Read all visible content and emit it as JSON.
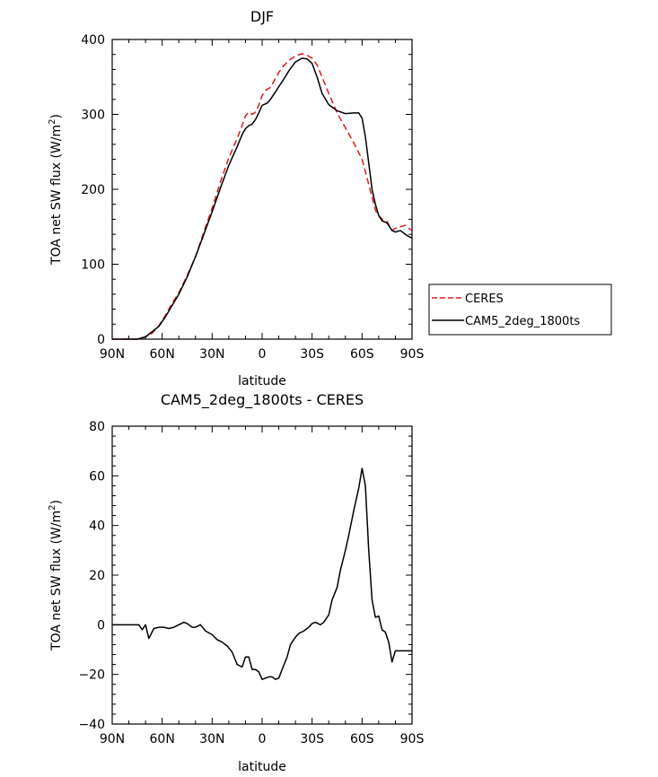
{
  "chart_data": [
    {
      "type": "line",
      "title": "DJF",
      "xlabel": "latitude",
      "ylabel": "TOA net SW flux (W/m",
      "ylabel_sup": "2",
      "ylabel_close": ")",
      "xlim": [
        90,
        -90
      ],
      "ylim": [
        0,
        400
      ],
      "xticks": [
        90,
        60,
        30,
        0,
        -30,
        -60,
        -90
      ],
      "xtick_labels": [
        "90N",
        "60N",
        "30N",
        "0",
        "30S",
        "60S",
        "90S"
      ],
      "yticks": [
        0,
        100,
        200,
        300,
        400
      ],
      "ytick_labels": [
        "0",
        "100",
        "200",
        "300",
        "400"
      ],
      "legend_position": "right",
      "series": [
        {
          "name": "CERES",
          "color": "#e01818",
          "dash": "dashed",
          "x": [
            90,
            85,
            80,
            75,
            70,
            66,
            62,
            58,
            54,
            50,
            45,
            40,
            35,
            30,
            25,
            20,
            15,
            12,
            10,
            8,
            6,
            4,
            2,
            0,
            -2,
            -5,
            -8,
            -10,
            -13,
            -16,
            -20,
            -24,
            -27,
            -30,
            -33,
            -36,
            -40,
            -45,
            -50,
            -55,
            -60,
            -63,
            -66,
            -68,
            -70,
            -72,
            -75,
            -78,
            -80,
            -83,
            -86,
            -88,
            -90
          ],
          "y": [
            0,
            0,
            0,
            0,
            3,
            8,
            18,
            32,
            48,
            62,
            85,
            110,
            143,
            175,
            210,
            242,
            268,
            285,
            298,
            303,
            300,
            303,
            312,
            325,
            332,
            336,
            348,
            356,
            365,
            372,
            378,
            381,
            379,
            375,
            366,
            350,
            328,
            302,
            282,
            262,
            240,
            215,
            190,
            172,
            165,
            160,
            157,
            145,
            148,
            150,
            152,
            148,
            145
          ]
        },
        {
          "name": "CAM5_2deg_1800ts",
          "color": "#000000",
          "dash": "solid",
          "x": [
            90,
            85,
            80,
            75,
            70,
            66,
            62,
            58,
            54,
            50,
            45,
            40,
            35,
            30,
            25,
            20,
            15,
            12,
            10,
            8,
            6,
            4,
            2,
            0,
            -3,
            -5,
            -8,
            -10,
            -13,
            -16,
            -20,
            -24,
            -27,
            -30,
            -33,
            -36,
            -40,
            -45,
            -50,
            -55,
            -58,
            -60,
            -62,
            -64,
            -66,
            -68,
            -70,
            -72,
            -75,
            -78,
            -80,
            -83,
            -86,
            -88,
            -90
          ],
          "y": [
            0,
            0,
            0,
            0,
            3,
            10,
            17,
            30,
            45,
            60,
            83,
            110,
            140,
            170,
            202,
            232,
            257,
            273,
            281,
            285,
            287,
            293,
            302,
            312,
            315,
            320,
            330,
            337,
            347,
            358,
            370,
            375,
            374,
            368,
            350,
            328,
            313,
            305,
            301,
            302,
            302,
            295,
            270,
            235,
            200,
            180,
            165,
            158,
            155,
            145,
            143,
            145,
            140,
            137,
            135
          ]
        }
      ]
    },
    {
      "type": "line",
      "title": "CAM5_2deg_1800ts - CERES",
      "xlabel": "latitude",
      "ylabel": "TOA net SW flux (W/m",
      "ylabel_sup": "2",
      "ylabel_close": ")",
      "xlim": [
        90,
        -90
      ],
      "ylim": [
        -40,
        80
      ],
      "xticks": [
        90,
        60,
        30,
        0,
        -30,
        -60,
        -90
      ],
      "xtick_labels": [
        "90N",
        "60N",
        "30N",
        "0",
        "30S",
        "60S",
        "90S"
      ],
      "yticks": [
        -40,
        -20,
        0,
        20,
        40,
        60,
        80
      ],
      "ytick_labels": [
        "−40",
        "−20",
        "0",
        "20",
        "40",
        "60",
        "80"
      ],
      "series": [
        {
          "name": "",
          "color": "#000000",
          "dash": "solid",
          "x": [
            90,
            85,
            80,
            77,
            74,
            72,
            70,
            68,
            65,
            62,
            59,
            56,
            53,
            50,
            47,
            45,
            42,
            40,
            37,
            34,
            30,
            27,
            24,
            21,
            18,
            15,
            12,
            10,
            8,
            6,
            4,
            2,
            0,
            -2,
            -4,
            -6,
            -8,
            -10,
            -12,
            -15,
            -17,
            -20,
            -22,
            -25,
            -28,
            -30,
            -32,
            -35,
            -37,
            -40,
            -42,
            -45,
            -47,
            -50,
            -52,
            -55,
            -58,
            -60,
            -62,
            -64,
            -66,
            -68,
            -70,
            -72,
            -74,
            -76,
            -78,
            -80,
            -82,
            -84,
            -86,
            -88,
            -90
          ],
          "y": [
            0,
            0,
            0,
            0,
            0,
            -2,
            0,
            -5.5,
            -1.5,
            -1,
            -1,
            -1.5,
            -1,
            0,
            1,
            0.5,
            -1,
            -1,
            0,
            -2.5,
            -4,
            -6,
            -7,
            -8.5,
            -11,
            -16,
            -17,
            -13,
            -13,
            -18,
            -18,
            -19,
            -22,
            -21.5,
            -21,
            -21,
            -22,
            -21.5,
            -18,
            -13,
            -8,
            -5,
            -3.5,
            -2.5,
            -1,
            0.5,
            1,
            0,
            1,
            4,
            10,
            15,
            22,
            30,
            36,
            46,
            55,
            63,
            56,
            30,
            10,
            3,
            3.5,
            -2,
            -3,
            -7,
            -15,
            -10.5,
            -10.5,
            -10.5,
            -10.5,
            -10.5,
            -10.5
          ]
        }
      ]
    }
  ]
}
